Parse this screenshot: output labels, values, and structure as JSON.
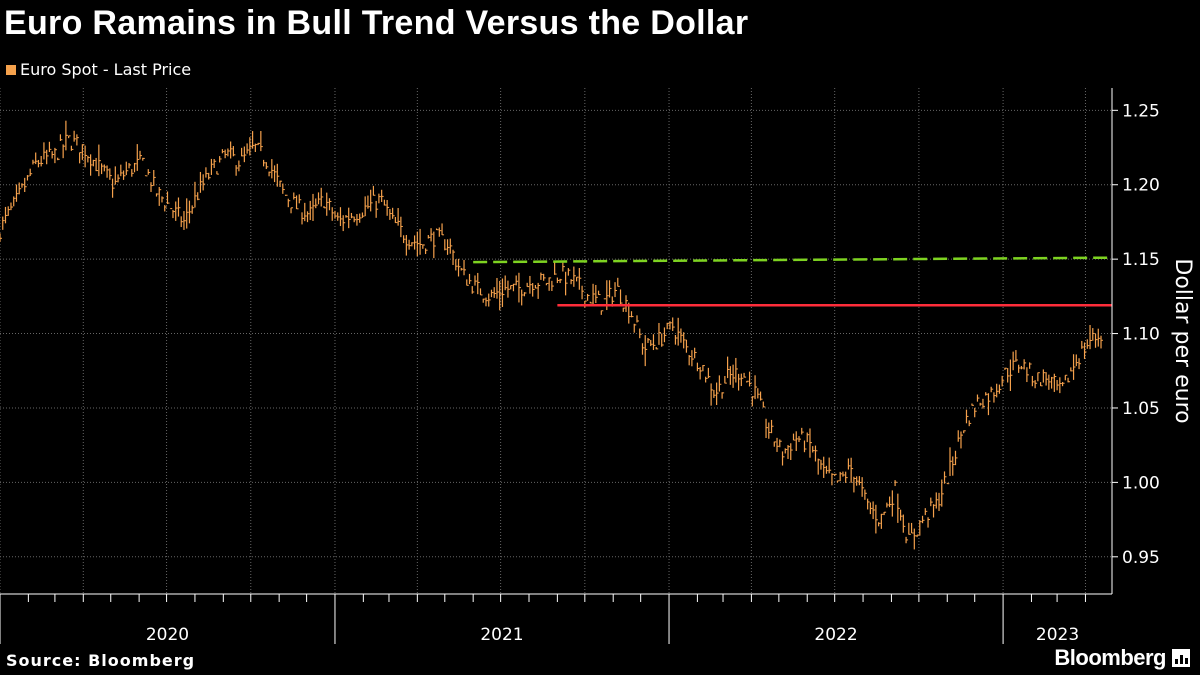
{
  "title": "Euro Ramains in Bull Trend Versus the Dollar",
  "source": "Source: Bloomberg",
  "brand": "Bloomberg",
  "colors": {
    "background": "#000000",
    "series": "#f5a14c",
    "support_line": "#7ed321",
    "resistance_line": "#ff2d3a",
    "grid": "#666666"
  },
  "chart_data": {
    "type": "line",
    "title": "Euro Ramains in Bull Trend Versus the Dollar",
    "ylabel": "Dollar per euro",
    "xlabel": "",
    "ylim": [
      0.925,
      1.265
    ],
    "y_ticks": [
      0.95,
      1.0,
      1.05,
      1.1,
      1.15,
      1.2,
      1.25
    ],
    "y_tick_labels": [
      "0.95",
      "1.00",
      "1.05",
      "1.10",
      "1.15",
      "1.20",
      "1.25"
    ],
    "x_range": [
      "2020-01-01",
      "2023-04-30"
    ],
    "x_tick_labels": [
      {
        "label": "2020",
        "date": "2020-01-01"
      },
      {
        "label": "2021",
        "date": "2021-01-01"
      },
      {
        "label": "2022",
        "date": "2022-01-01"
      },
      {
        "label": "2023",
        "date": "2023-01-01"
      }
    ],
    "grid": true,
    "legend": "top-left",
    "series": [
      {
        "name": "Euro Spot - Last Price",
        "style": "ohlc-bars",
        "x": [
          "2020-01-01",
          "2020-01-20",
          "2020-02-10",
          "2020-03-01",
          "2020-03-15",
          "2020-04-01",
          "2020-04-20",
          "2020-05-05",
          "2020-05-20",
          "2020-06-05",
          "2020-06-20",
          "2020-07-05",
          "2020-07-20",
          "2020-08-05",
          "2020-08-20",
          "2020-09-05",
          "2020-09-20",
          "2020-10-05",
          "2020-10-20",
          "2020-11-05",
          "2020-11-20",
          "2020-12-05",
          "2020-12-20",
          "2021-01-05",
          "2021-01-20",
          "2021-02-05",
          "2021-02-20",
          "2021-03-05",
          "2021-03-20",
          "2021-04-05",
          "2021-04-20",
          "2021-05-05",
          "2021-05-20",
          "2021-06-05",
          "2021-06-20",
          "2021-07-05",
          "2021-07-20",
          "2021-08-05",
          "2021-08-20",
          "2021-09-05",
          "2021-09-20",
          "2021-10-05",
          "2021-10-20",
          "2021-11-05",
          "2021-11-20",
          "2021-12-05",
          "2021-12-20",
          "2022-01-05",
          "2022-01-20",
          "2022-02-05",
          "2022-02-20",
          "2022-03-05",
          "2022-03-20",
          "2022-04-05",
          "2022-04-20",
          "2022-05-05",
          "2022-05-20",
          "2022-06-05",
          "2022-06-20",
          "2022-07-05",
          "2022-07-20",
          "2022-08-05",
          "2022-08-20",
          "2022-09-05",
          "2022-09-20",
          "2022-10-05",
          "2022-10-20",
          "2022-11-05",
          "2022-11-20",
          "2022-12-05",
          "2022-12-20",
          "2023-01-05",
          "2023-01-20",
          "2023-02-05",
          "2023-02-20",
          "2023-03-05",
          "2023-03-20",
          "2023-04-05",
          "2023-04-20"
        ],
        "y": [
          1.17,
          1.19,
          1.215,
          1.22,
          1.23,
          1.225,
          1.21,
          1.2,
          1.21,
          1.215,
          1.195,
          1.185,
          1.175,
          1.195,
          1.21,
          1.22,
          1.215,
          1.225,
          1.215,
          1.195,
          1.185,
          1.18,
          1.19,
          1.175,
          1.18,
          1.185,
          1.19,
          1.175,
          1.165,
          1.16,
          1.165,
          1.16,
          1.14,
          1.13,
          1.125,
          1.13,
          1.13,
          1.135,
          1.135,
          1.14,
          1.135,
          1.125,
          1.12,
          1.13,
          1.115,
          1.09,
          1.095,
          1.105,
          1.09,
          1.08,
          1.06,
          1.07,
          1.075,
          1.06,
          1.035,
          1.02,
          1.03,
          1.025,
          1.005,
          1.0,
          1.01,
          0.985,
          0.975,
          0.995,
          0.96,
          0.975,
          0.985,
          1.01,
          1.04,
          1.055,
          1.06,
          1.075,
          1.08,
          1.07,
          1.07,
          1.06,
          1.08,
          1.095,
          1.1
        ]
      }
    ],
    "reference_lines": [
      {
        "style": "dashed",
        "color": "support_line",
        "from": {
          "x": "2021-06-01",
          "y": 1.148
        },
        "to": {
          "x": "2023-04-30",
          "y": 1.151
        }
      },
      {
        "style": "solid",
        "color": "resistance_line",
        "from": {
          "x": "2021-09-01",
          "y": 1.119
        },
        "to": {
          "x": "2023-04-30",
          "y": 1.119
        }
      }
    ]
  }
}
